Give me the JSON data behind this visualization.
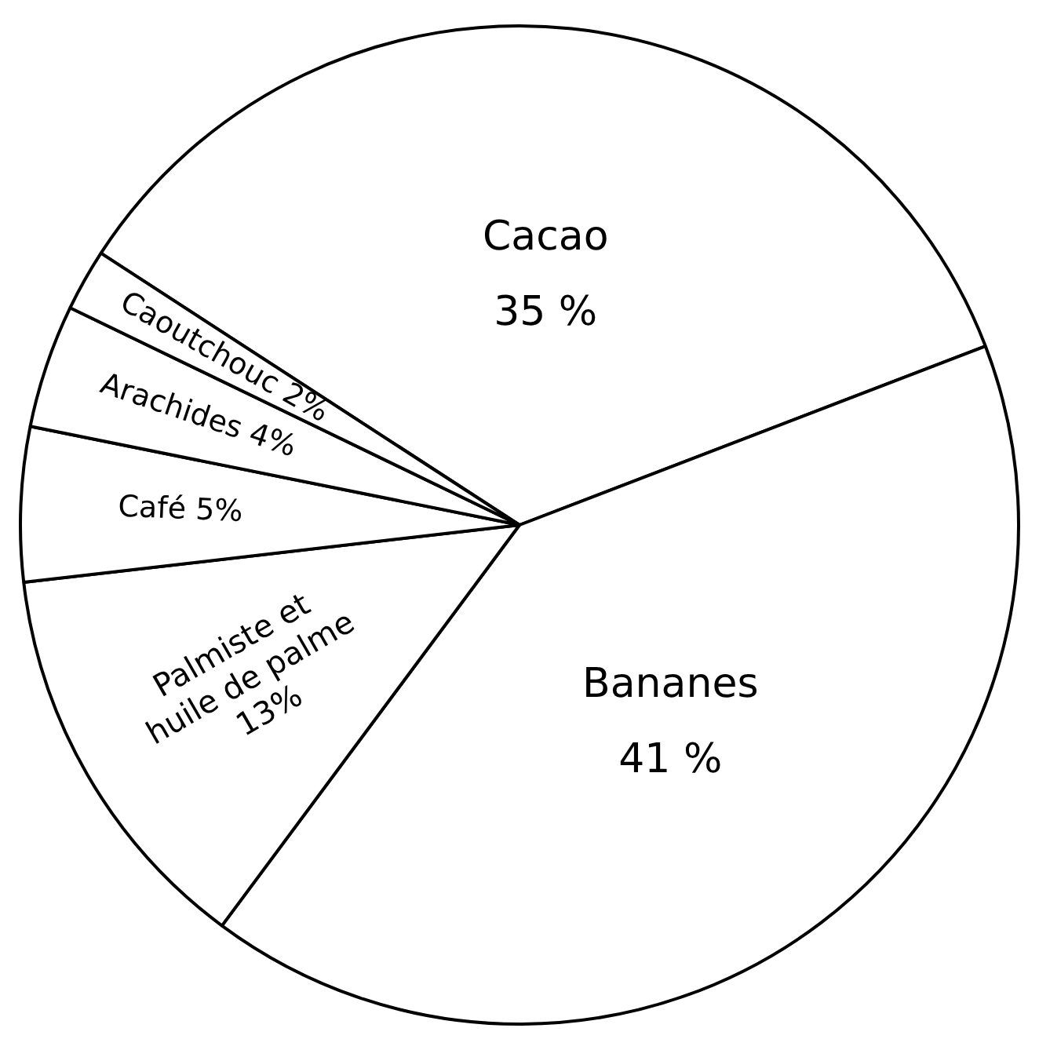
{
  "chart_data": {
    "type": "pie",
    "categories": [
      "Cacao",
      "Bananes",
      "Palmiste et huile de palme",
      "Café",
      "Arachides",
      "Caoutchouc"
    ],
    "values": [
      35,
      41,
      13,
      5,
      4,
      2
    ],
    "value_labels": [
      "35 %",
      "41 %",
      "13%",
      "5%",
      "4%",
      "2%"
    ],
    "colors": [
      "#ffffff",
      "#ffffff",
      "#ffffff",
      "#ffffff",
      "#ffffff",
      "#ffffff"
    ],
    "legend": false
  }
}
